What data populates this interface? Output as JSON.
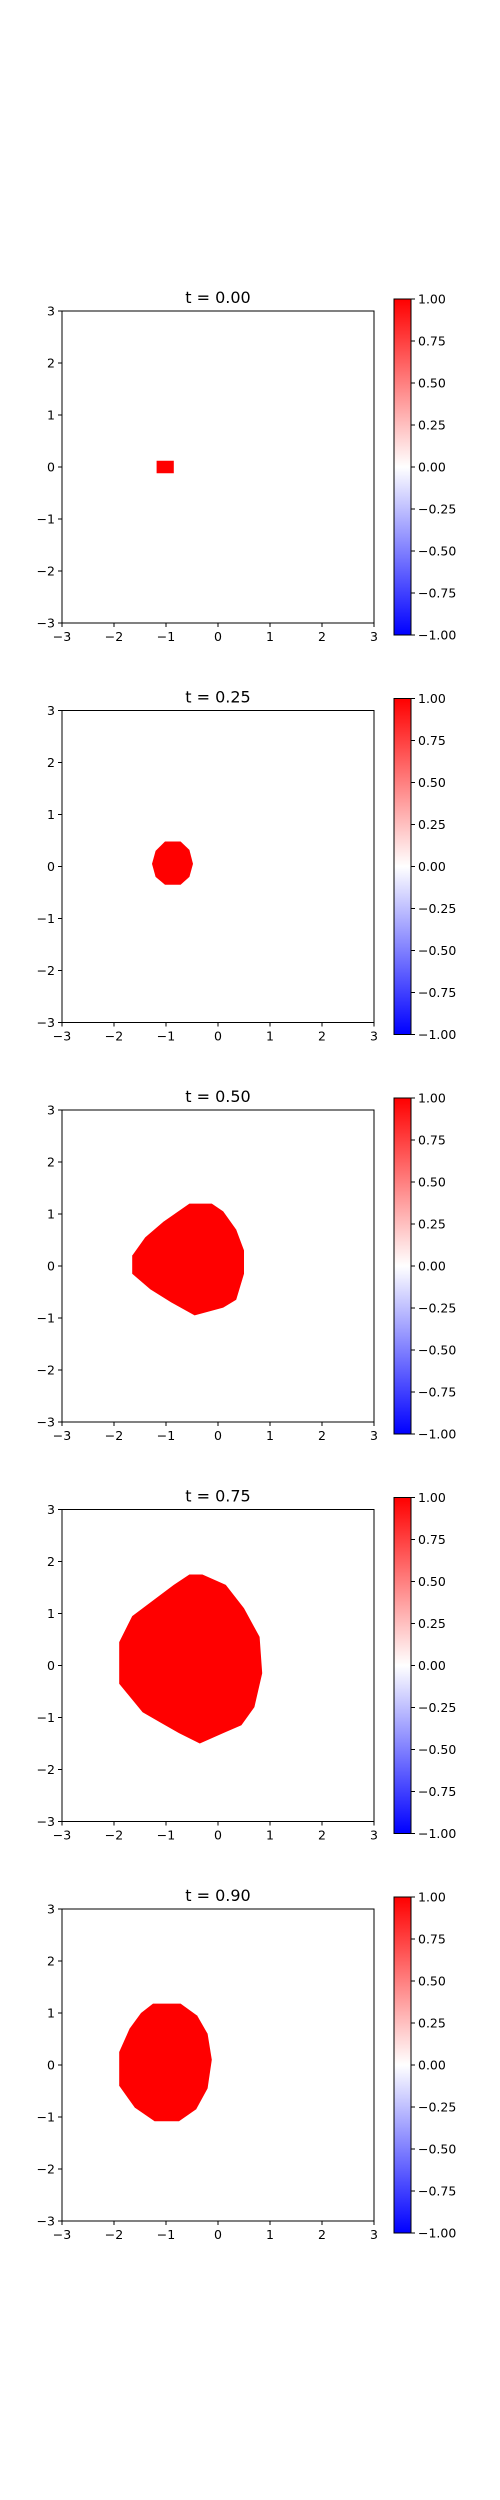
{
  "chart_data": [
    {
      "type": "heatmap",
      "title": "t = 0.00",
      "xlim": [
        -3,
        3
      ],
      "ylim": [
        -3,
        3
      ],
      "x_ticks": [
        "−3",
        "−2",
        "−1",
        "0",
        "1",
        "2",
        "3"
      ],
      "y_ticks": [
        "3",
        "2",
        "1",
        "0",
        "−1",
        "−2",
        "−3"
      ],
      "colorbar": {
        "min": -1.0,
        "max": 1.0,
        "ticks": [
          "1.00",
          "0.75",
          "0.50",
          "0.25",
          "0.00",
          "−0.25",
          "−0.50",
          "−0.75",
          "−1.00"
        ],
        "cmap": "bwr"
      },
      "region": {
        "value": 1.0,
        "outline": [
          [
            -1.18,
            0.12
          ],
          [
            -0.85,
            0.12
          ],
          [
            -0.85,
            -0.12
          ],
          [
            -1.18,
            -0.12
          ]
        ]
      }
    },
    {
      "type": "heatmap",
      "title": "t = 0.25",
      "xlim": [
        -3,
        3
      ],
      "ylim": [
        -3,
        3
      ],
      "x_ticks": [
        "−3",
        "−2",
        "−1",
        "0",
        "1",
        "2",
        "3"
      ],
      "y_ticks": [
        "3",
        "2",
        "1",
        "0",
        "−1",
        "−2",
        "−3"
      ],
      "colorbar": {
        "min": -1.0,
        "max": 1.0,
        "ticks": [
          "1.00",
          "0.75",
          "0.50",
          "0.25",
          "0.00",
          "−0.25",
          "−0.50",
          "−0.75",
          "−1.00"
        ],
        "cmap": "bwr"
      },
      "region": {
        "value": 1.0,
        "outline": [
          [
            -1.02,
            0.48
          ],
          [
            -0.72,
            0.48
          ],
          [
            -0.55,
            0.32
          ],
          [
            -0.48,
            0.05
          ],
          [
            -0.55,
            -0.2
          ],
          [
            -0.72,
            -0.35
          ],
          [
            -1.02,
            -0.35
          ],
          [
            -1.2,
            -0.2
          ],
          [
            -1.27,
            0.05
          ],
          [
            -1.2,
            0.3
          ]
        ]
      }
    },
    {
      "type": "heatmap",
      "title": "t = 0.50",
      "xlim": [
        -3,
        3
      ],
      "ylim": [
        -3,
        3
      ],
      "x_ticks": [
        "−3",
        "−2",
        "−1",
        "0",
        "1",
        "2",
        "3"
      ],
      "y_ticks": [
        "3",
        "2",
        "1",
        "0",
        "−1",
        "−2",
        "−3"
      ],
      "colorbar": {
        "min": -1.0,
        "max": 1.0,
        "ticks": [
          "1.00",
          "0.75",
          "0.50",
          "0.25",
          "0.00",
          "−0.25",
          "−0.50",
          "−0.75",
          "−1.00"
        ],
        "cmap": "bwr"
      },
      "region": {
        "value": 1.0,
        "outline": [
          [
            -0.55,
            1.2
          ],
          [
            -0.12,
            1.2
          ],
          [
            0.1,
            1.05
          ],
          [
            0.35,
            0.7
          ],
          [
            0.5,
            0.3
          ],
          [
            0.5,
            -0.15
          ],
          [
            0.35,
            -0.65
          ],
          [
            0.1,
            -0.8
          ],
          [
            -0.45,
            -0.95
          ],
          [
            -0.9,
            -0.7
          ],
          [
            -1.3,
            -0.45
          ],
          [
            -1.65,
            -0.15
          ],
          [
            -1.65,
            0.2
          ],
          [
            -1.4,
            0.55
          ],
          [
            -1.05,
            0.85
          ]
        ]
      }
    },
    {
      "type": "heatmap",
      "title": "t = 0.75",
      "xlim": [
        -3,
        3
      ],
      "ylim": [
        -3,
        3
      ],
      "x_ticks": [
        "−3",
        "−2",
        "−1",
        "0",
        "1",
        "2",
        "3"
      ],
      "y_ticks": [
        "3",
        "2",
        "1",
        "0",
        "−1",
        "−2",
        "−3"
      ],
      "colorbar": {
        "min": -1.0,
        "max": 1.0,
        "ticks": [
          "1.00",
          "0.75",
          "0.50",
          "0.25",
          "0.00",
          "−0.25",
          "−0.50",
          "−0.75",
          "−1.00"
        ],
        "cmap": "bwr"
      },
      "region": {
        "value": 1.0,
        "outline": [
          [
            -0.55,
            1.75
          ],
          [
            -0.3,
            1.75
          ],
          [
            0.15,
            1.55
          ],
          [
            0.5,
            1.1
          ],
          [
            0.8,
            0.55
          ],
          [
            0.85,
            -0.15
          ],
          [
            0.7,
            -0.8
          ],
          [
            0.45,
            -1.15
          ],
          [
            0.1,
            -1.3
          ],
          [
            -0.35,
            -1.5
          ],
          [
            -0.75,
            -1.3
          ],
          [
            -1.1,
            -1.1
          ],
          [
            -1.45,
            -0.9
          ],
          [
            -1.9,
            -0.35
          ],
          [
            -1.9,
            0.45
          ],
          [
            -1.65,
            0.95
          ],
          [
            -1.25,
            1.25
          ],
          [
            -0.85,
            1.55
          ]
        ]
      }
    },
    {
      "type": "heatmap",
      "title": "t = 0.90",
      "xlim": [
        -3,
        3
      ],
      "ylim": [
        -3,
        3
      ],
      "x_ticks": [
        "−3",
        "−2",
        "−1",
        "0",
        "1",
        "2",
        "3"
      ],
      "y_ticks": [
        "3",
        "2",
        "1",
        "0",
        "−1",
        "−2",
        "−3"
      ],
      "colorbar": {
        "min": -1.0,
        "max": 1.0,
        "ticks": [
          "1.00",
          "0.75",
          "0.50",
          "0.25",
          "0.00",
          "−0.25",
          "−0.50",
          "−0.75",
          "−1.00"
        ],
        "cmap": "bwr"
      },
      "region": {
        "value": 1.0,
        "outline": [
          [
            -1.25,
            1.18
          ],
          [
            -0.72,
            1.18
          ],
          [
            -0.4,
            0.95
          ],
          [
            -0.2,
            0.6
          ],
          [
            -0.12,
            0.1
          ],
          [
            -0.2,
            -0.45
          ],
          [
            -0.42,
            -0.85
          ],
          [
            -0.75,
            -1.08
          ],
          [
            -1.22,
            -1.08
          ],
          [
            -1.6,
            -0.82
          ],
          [
            -1.9,
            -0.4
          ],
          [
            -1.9,
            0.25
          ],
          [
            -1.7,
            0.7
          ],
          [
            -1.48,
            1.0
          ]
        ]
      }
    }
  ]
}
